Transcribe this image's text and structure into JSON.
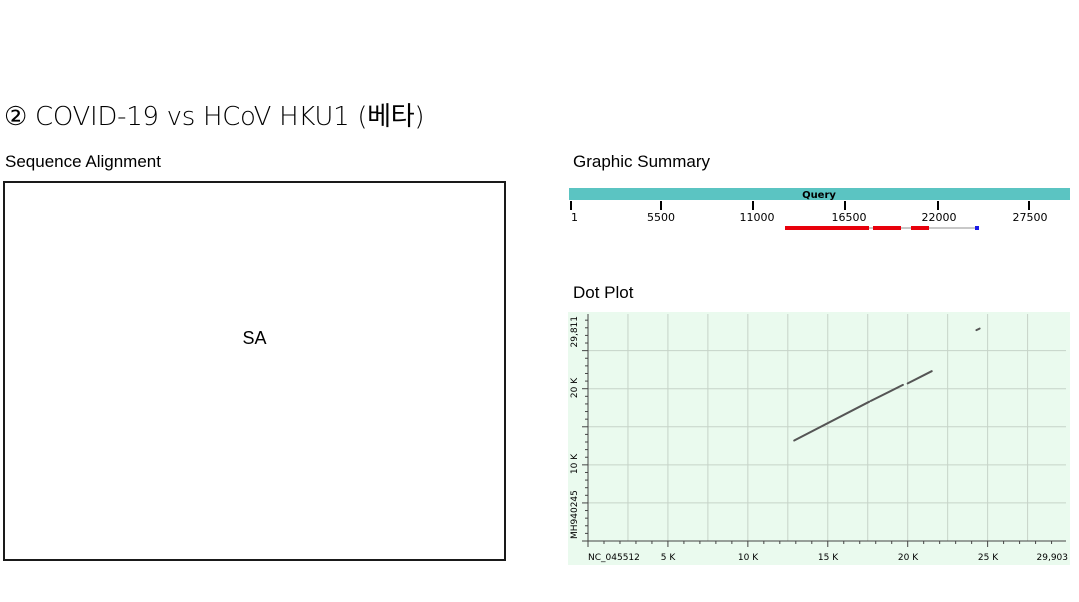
{
  "slide": {
    "title": "② COVID-19 vs HCoV HKU1 (베타)"
  },
  "sequence_alignment": {
    "label": "Sequence Alignment",
    "placeholder": "SA"
  },
  "graphic_summary": {
    "label": "Graphic Summary",
    "query_label": "Query",
    "ticks": [
      "1",
      "5500",
      "11000",
      "16500",
      "22000",
      "27500"
    ],
    "colors": {
      "query_bar": "#5bc4c2",
      "hit": "#e8000b",
      "gap": "#c8c8c8",
      "marker": "#1a1ae6"
    }
  },
  "dot_plot": {
    "label": "Dot Plot",
    "x_axis_name": "NC_045512",
    "y_axis_name": "MH940245",
    "x_ticks": [
      "5 K",
      "10 K",
      "15 K",
      "20 K",
      "25 K"
    ],
    "x_end": "29,903",
    "y_ticks": [
      "10 K",
      "20 K"
    ],
    "y_end": "29,811",
    "colors": {
      "background": "#eafaee",
      "grid": "#c6d3c8",
      "line": "#555555"
    }
  },
  "chart_data": {
    "type": "line",
    "xlabel": "NC_045512",
    "ylabel": "MH940245",
    "xlim": [
      0,
      29903
    ],
    "ylim": [
      0,
      29811
    ],
    "series": [
      {
        "x": [
          12900,
          17600
        ],
        "y": [
          13200,
          18300
        ]
      },
      {
        "x": [
          17700,
          19700
        ],
        "y": [
          18400,
          20500
        ]
      },
      {
        "x": [
          20000,
          21500
        ],
        "y": [
          20700,
          22300
        ]
      },
      {
        "x": [
          24300,
          24500
        ],
        "y": [
          27700,
          27900
        ]
      }
    ]
  }
}
